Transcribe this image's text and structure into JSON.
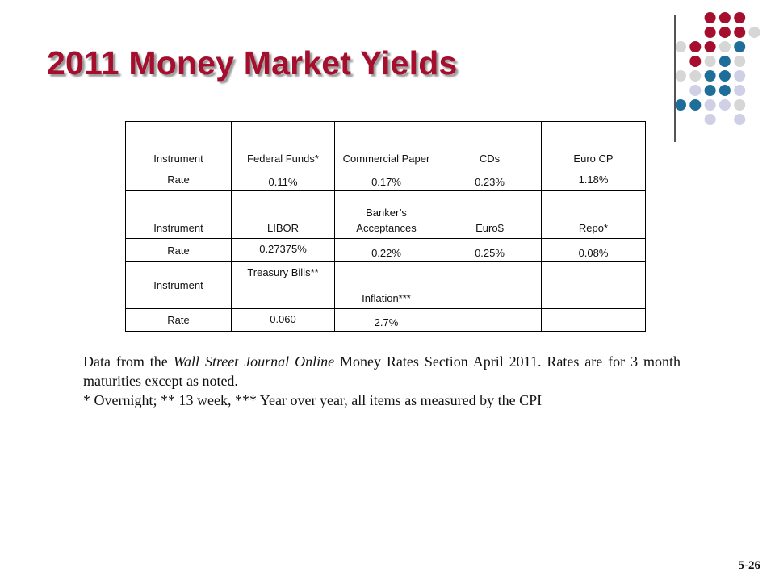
{
  "slide": {
    "title": "2011 Money Market Yields",
    "page_number": "5-26"
  },
  "colors": {
    "title": "#A50F2D",
    "dot_red": "#A50F2D",
    "dot_blue": "#1F6E99",
    "dot_gray": "#D6D6D6",
    "dot_lavender": "#CFCFE6"
  },
  "table": {
    "rows": [
      [
        "Instrument",
        "Federal Funds*",
        "Commercial Paper",
        "CDs",
        "Euro CP"
      ],
      [
        "Rate",
        "0.11%",
        "0.17%",
        "0.23%",
        "1.18%"
      ],
      [
        "Instrument",
        "LIBOR",
        "Banker’s Acceptances",
        "Euro$",
        "Repo*"
      ],
      [
        "Rate",
        "0.27375%",
        "0.22%",
        "0.25%",
        "0.08%"
      ],
      [
        "Instrument",
        "Treasury Bills**",
        "Inflation***",
        "",
        ""
      ],
      [
        "Rate",
        "0.060",
        "2.7%",
        "",
        ""
      ]
    ]
  },
  "note": {
    "line1_prefix": "Data from the ",
    "line1_source": "Wall Street Journal Online",
    "line1_suffix": " Money Rates Section April 2011.  Rates are for 3 month maturities except as noted.",
    "line2": "* Overnight; ** 13 week, *** Year over year, all items as measured by the CPI"
  }
}
